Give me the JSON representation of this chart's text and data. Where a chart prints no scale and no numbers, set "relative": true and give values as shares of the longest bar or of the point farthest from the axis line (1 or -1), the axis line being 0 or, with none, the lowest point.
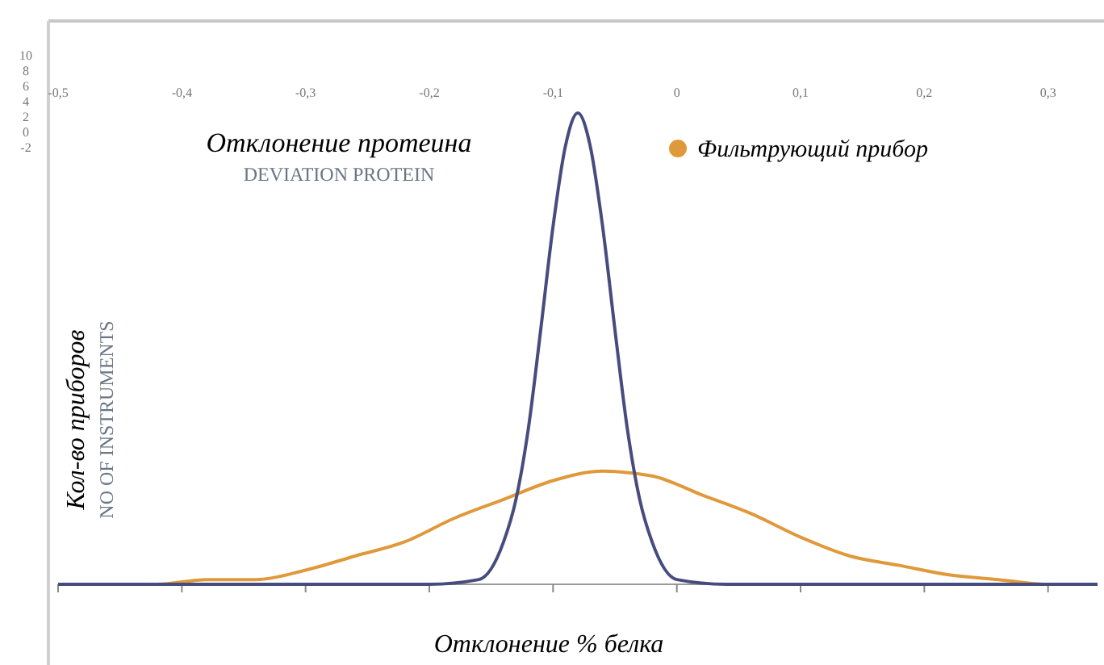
{
  "chart_data": {
    "type": "line",
    "title": "Отклонение протеина",
    "subtitle": "DEVIATION PROTEIN",
    "xlabel": "Отклонение % белка",
    "ylabel": "Кол-во приборов",
    "annotations": [
      "NO OF INSTRUMENTS",
      "10",
      "8",
      "6",
      "4",
      "2",
      "0",
      "-2"
    ],
    "relative": true,
    "xlim": [
      -0.5,
      0.34
    ],
    "xticks": [
      {
        "value": -0.5,
        "label": "-0,5"
      },
      {
        "value": -0.4,
        "label": "-0,4"
      },
      {
        "value": -0.3,
        "label": "-0,3"
      },
      {
        "value": -0.2,
        "label": "-0,2"
      },
      {
        "value": -0.1,
        "label": "-0,1"
      },
      0,
      {
        "value": 0.1,
        "label": "0,1"
      },
      {
        "value": 0.2,
        "label": "0,2"
      },
      {
        "value": 0.3,
        "label": "0,3"
      }
    ],
    "legend": "top right",
    "line_style": "solid",
    "grid": false,
    "series": [
      {
        "name": "Фильтрующий прибор",
        "color": "#e0993a",
        "x": [
          -0.5,
          -0.46,
          -0.42,
          -0.38,
          -0.34,
          -0.3,
          -0.26,
          -0.22,
          -0.18,
          -0.14,
          -0.1,
          -0.06,
          -0.02,
          0.02,
          0.06,
          0.1,
          0.14,
          0.18,
          0.22,
          0.26,
          0.3,
          0.34
        ],
        "values": [
          0,
          0,
          0,
          0.01,
          0.01,
          0.03,
          0.06,
          0.09,
          0.14,
          0.18,
          0.22,
          0.24,
          0.23,
          0.19,
          0.15,
          0.1,
          0.06,
          0.04,
          0.02,
          0.01,
          0,
          0
        ]
      },
      {
        "color": "#474c7e",
        "x": [
          -0.5,
          -0.2,
          -0.16,
          -0.14,
          -0.13,
          -0.12,
          -0.11,
          -0.1,
          -0.09,
          -0.08,
          -0.07,
          -0.06,
          -0.05,
          -0.04,
          -0.03,
          -0.02,
          0,
          0.04,
          0.34
        ],
        "values": [
          0,
          0,
          0.01,
          0.09,
          0.18,
          0.33,
          0.54,
          0.76,
          0.93,
          1,
          0.93,
          0.76,
          0.54,
          0.33,
          0.18,
          0.09,
          0.01,
          0,
          0
        ]
      }
    ]
  }
}
